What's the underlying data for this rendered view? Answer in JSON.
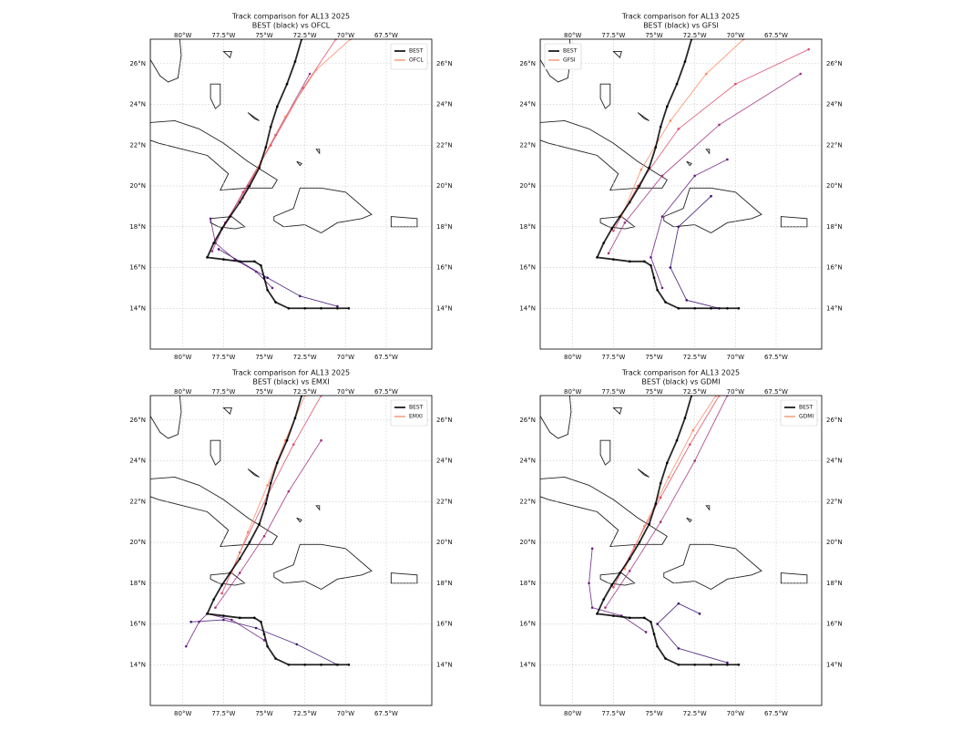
{
  "chart_data": [
    {
      "type": "line",
      "title": "Track comparison for AL13 2025",
      "subtitle": "BEST (black) vs OFCL",
      "xlim": [
        -82,
        -64.7
      ],
      "ylim": [
        12,
        27.2
      ],
      "xticks": [
        {
          "value": -80,
          "label": "80°W"
        },
        {
          "value": -77.5,
          "label": "77.5°W"
        },
        {
          "value": -75,
          "label": "75°W"
        },
        {
          "value": -72.5,
          "label": "72.5°W"
        },
        {
          "value": -70,
          "label": "70°W"
        },
        {
          "value": -67.5,
          "label": "67.5°W"
        }
      ],
      "yticks": [
        {
          "value": 14,
          "label": "14°N"
        },
        {
          "value": 16,
          "label": "16°N"
        },
        {
          "value": 18,
          "label": "18°N"
        },
        {
          "value": 20,
          "label": "20°N"
        },
        {
          "value": 22,
          "label": "22°N"
        },
        {
          "value": 24,
          "label": "24°N"
        },
        {
          "value": 26,
          "label": "26°N"
        }
      ],
      "grid": true,
      "legend": "upper right",
      "series": [
        {
          "name": "BEST",
          "color": "#000000",
          "x": [
            -69.8,
            -70.5,
            -71.5,
            -72.5,
            -73.5,
            -74.3,
            -74.8,
            -75.0,
            -75.2,
            -75.6,
            -76.5,
            -77.5,
            -78.5,
            -78.1,
            -77.6,
            -77.1,
            -76.5,
            -75.9,
            -75.3,
            -74.9,
            -74.6,
            -74.2,
            -73.6,
            -73.1,
            -72.7
          ],
          "values": [
            14.0,
            14.0,
            14.0,
            14.0,
            14.0,
            14.3,
            14.9,
            15.5,
            16.1,
            16.3,
            16.3,
            16.4,
            16.5,
            17.2,
            17.9,
            18.5,
            19.2,
            20.0,
            20.9,
            21.9,
            22.9,
            23.9,
            25.0,
            26.1,
            27.2
          ]
        },
        {
          "name": "OFCL",
          "color": "#f4a582",
          "tracks": [
            {
              "color": "#3b0f70",
              "x": [
                -70.5,
                -72.8,
                -74.8,
                -76.5,
                -77.8
              ],
              "values": [
                14.1,
                14.6,
                15.5,
                16.3,
                16.9
              ]
            },
            {
              "color": "#6a1c81",
              "x": [
                -74.5,
                -75.5,
                -76.8,
                -78.0,
                -78.3
              ],
              "values": [
                15.0,
                15.8,
                16.4,
                17.2,
                18.4
              ]
            },
            {
              "color": "#a3307e",
              "x": [
                -78.2,
                -77.4,
                -76.0,
                -74.3,
                -72.2
              ],
              "values": [
                16.8,
                18.2,
                20.0,
                22.5,
                25.5
              ]
            },
            {
              "color": "#de4968",
              "x": [
                -77.5,
                -76.3,
                -74.6,
                -72.6,
                -70.6
              ],
              "values": [
                18.0,
                19.7,
                22.0,
                24.8,
                27.2
              ]
            },
            {
              "color": "#fb8861",
              "x": [
                -76.3,
                -75.2,
                -73.7,
                -71.8,
                -69.7
              ],
              "values": [
                19.4,
                21.2,
                23.4,
                25.7,
                27.2
              ]
            }
          ]
        }
      ]
    },
    {
      "type": "line",
      "title": "Track comparison for AL13 2025",
      "subtitle": "BEST (black) vs GFSI",
      "xlim": [
        -82,
        -64.7
      ],
      "ylim": [
        12,
        27.2
      ],
      "xticks": [
        {
          "value": -80,
          "label": "80°W"
        },
        {
          "value": -77.5,
          "label": "77.5°W"
        },
        {
          "value": -75,
          "label": "75°W"
        },
        {
          "value": -72.5,
          "label": "72.5°W"
        },
        {
          "value": -70,
          "label": "70°W"
        },
        {
          "value": -67.5,
          "label": "67.5°W"
        }
      ],
      "yticks": [
        {
          "value": 14,
          "label": "14°N"
        },
        {
          "value": 16,
          "label": "16°N"
        },
        {
          "value": 18,
          "label": "18°N"
        },
        {
          "value": 20,
          "label": "20°N"
        },
        {
          "value": 22,
          "label": "22°N"
        },
        {
          "value": 24,
          "label": "24°N"
        },
        {
          "value": 26,
          "label": "26°N"
        }
      ],
      "grid": true,
      "legend": "upper left",
      "series": [
        {
          "name": "BEST",
          "color": "#000000",
          "x": [
            -69.8,
            -70.5,
            -71.5,
            -72.5,
            -73.5,
            -74.3,
            -74.8,
            -75.0,
            -75.2,
            -75.6,
            -76.5,
            -77.5,
            -78.5,
            -78.1,
            -77.6,
            -77.1,
            -76.5,
            -75.9,
            -75.3,
            -74.9,
            -74.6,
            -74.2,
            -73.6,
            -73.1,
            -72.7
          ],
          "values": [
            14.0,
            14.0,
            14.0,
            14.0,
            14.0,
            14.3,
            14.9,
            15.5,
            16.1,
            16.3,
            16.3,
            16.4,
            16.5,
            17.2,
            17.9,
            18.5,
            19.2,
            20.0,
            20.9,
            21.9,
            22.9,
            23.9,
            25.0,
            26.1,
            27.2
          ]
        },
        {
          "name": "GFSI",
          "color": "#f4a582",
          "tracks": [
            {
              "color": "#3b0f70",
              "x": [
                -71.0,
                -73.0,
                -74.0,
                -73.5,
                -71.5
              ],
              "values": [
                14.0,
                14.4,
                16.0,
                18.0,
                19.5
              ]
            },
            {
              "color": "#6a1c81",
              "x": [
                -74.5,
                -75.2,
                -74.5,
                -72.5,
                -70.5
              ],
              "values": [
                15.0,
                16.5,
                18.5,
                20.5,
                21.3
              ]
            },
            {
              "color": "#a3307e",
              "x": [
                -77.8,
                -76.8,
                -74.5,
                -71.0,
                -66.0
              ],
              "values": [
                16.7,
                18.2,
                20.5,
                23.0,
                25.5
              ]
            },
            {
              "color": "#de4968",
              "x": [
                -77.5,
                -76.0,
                -73.5,
                -70.0,
                -65.5
              ],
              "values": [
                17.8,
                20.0,
                22.8,
                25.0,
                26.7
              ]
            },
            {
              "color": "#fb8861",
              "x": [
                -77.0,
                -75.8,
                -74.0,
                -71.8,
                -69.5
              ],
              "values": [
                18.5,
                20.8,
                23.2,
                25.5,
                27.2
              ]
            }
          ]
        }
      ]
    },
    {
      "type": "line",
      "title": "Track comparison for AL13 2025",
      "subtitle": "BEST (black) vs EMXI",
      "xlim": [
        -82,
        -64.7
      ],
      "ylim": [
        12,
        27.2
      ],
      "xticks": [
        {
          "value": -80,
          "label": "80°W"
        },
        {
          "value": -77.5,
          "label": "77.5°W"
        },
        {
          "value": -75,
          "label": "75°W"
        },
        {
          "value": -72.5,
          "label": "72.5°W"
        },
        {
          "value": -70,
          "label": "70°W"
        },
        {
          "value": -67.5,
          "label": "67.5°W"
        }
      ],
      "yticks": [
        {
          "value": 14,
          "label": "14°N"
        },
        {
          "value": 16,
          "label": "16°N"
        },
        {
          "value": 18,
          "label": "18°N"
        },
        {
          "value": 20,
          "label": "20°N"
        },
        {
          "value": 22,
          "label": "22°N"
        },
        {
          "value": 24,
          "label": "24°N"
        },
        {
          "value": 26,
          "label": "26°N"
        }
      ],
      "grid": true,
      "legend": "upper right",
      "series": [
        {
          "name": "BEST",
          "color": "#000000",
          "x": [
            -69.8,
            -70.5,
            -71.5,
            -72.5,
            -73.5,
            -74.3,
            -74.8,
            -75.0,
            -75.2,
            -75.6,
            -76.5,
            -77.5,
            -78.5,
            -78.1,
            -77.6,
            -77.1,
            -76.5,
            -75.9,
            -75.3,
            -74.9,
            -74.6,
            -74.2,
            -73.6,
            -73.1,
            -72.7
          ],
          "values": [
            14.0,
            14.0,
            14.0,
            14.0,
            14.0,
            14.3,
            14.9,
            15.5,
            16.1,
            16.3,
            16.3,
            16.4,
            16.5,
            17.2,
            17.9,
            18.5,
            19.2,
            20.0,
            20.9,
            21.9,
            22.9,
            23.9,
            25.0,
            26.1,
            27.2
          ]
        },
        {
          "name": "EMXI",
          "color": "#f4a582",
          "tracks": [
            {
              "color": "#3b0f70",
              "x": [
                -70.5,
                -73.0,
                -75.5,
                -77.5,
                -79.5
              ],
              "values": [
                14.0,
                15.0,
                15.8,
                16.2,
                16.1
              ]
            },
            {
              "color": "#6a1c81",
              "x": [
                -75.0,
                -77.0,
                -78.5,
                -79.0,
                -79.8
              ],
              "values": [
                15.2,
                16.2,
                16.5,
                16.1,
                14.9
              ]
            },
            {
              "color": "#a3307e",
              "x": [
                -78.0,
                -76.5,
                -75.0,
                -73.5,
                -71.5
              ],
              "values": [
                16.8,
                18.5,
                20.3,
                22.5,
                25.0
              ]
            },
            {
              "color": "#de4968",
              "x": [
                -77.6,
                -76.5,
                -74.8,
                -73.2,
                -71.5
              ],
              "values": [
                17.5,
                19.5,
                22.3,
                24.8,
                27.2
              ]
            },
            {
              "color": "#fb8861",
              "x": [
                -77.0,
                -76.0,
                -74.8,
                -73.7,
                -72.5
              ],
              "values": [
                18.5,
                20.5,
                22.8,
                25.0,
                27.2
              ]
            }
          ]
        }
      ]
    },
    {
      "type": "line",
      "title": "Track comparison for AL13 2025",
      "subtitle": "BEST (black) vs GDMI",
      "xlim": [
        -82,
        -64.7
      ],
      "ylim": [
        12,
        27.2
      ],
      "xticks": [
        {
          "value": -80,
          "label": "80°W"
        },
        {
          "value": -77.5,
          "label": "77.5°W"
        },
        {
          "value": -75,
          "label": "75°W"
        },
        {
          "value": -72.5,
          "label": "72.5°W"
        },
        {
          "value": -70,
          "label": "70°W"
        },
        {
          "value": -67.5,
          "label": "67.5°W"
        }
      ],
      "yticks": [
        {
          "value": 14,
          "label": "14°N"
        },
        {
          "value": 16,
          "label": "16°N"
        },
        {
          "value": 18,
          "label": "18°N"
        },
        {
          "value": 20,
          "label": "20°N"
        },
        {
          "value": 22,
          "label": "22°N"
        },
        {
          "value": 24,
          "label": "24°N"
        },
        {
          "value": 26,
          "label": "26°N"
        }
      ],
      "grid": true,
      "legend": "upper right",
      "series": [
        {
          "name": "BEST",
          "color": "#000000",
          "x": [
            -69.8,
            -70.5,
            -71.5,
            -72.5,
            -73.5,
            -74.3,
            -74.8,
            -75.0,
            -75.2,
            -75.6,
            -76.5,
            -77.5,
            -78.5,
            -78.1,
            -77.6,
            -77.1,
            -76.5,
            -75.9,
            -75.3,
            -74.9,
            -74.6,
            -74.2,
            -73.6,
            -73.1,
            -72.7
          ],
          "values": [
            14.0,
            14.0,
            14.0,
            14.0,
            14.0,
            14.3,
            14.9,
            15.5,
            16.1,
            16.3,
            16.3,
            16.4,
            16.5,
            17.2,
            17.9,
            18.5,
            19.2,
            20.0,
            20.9,
            21.9,
            22.9,
            23.9,
            25.0,
            26.1,
            27.2
          ]
        },
        {
          "name": "GDMI",
          "color": "#f4a582",
          "tracks": [
            {
              "color": "#3b0f70",
              "x": [
                -70.5,
                -73.5,
                -74.8,
                -73.5,
                -72.2
              ],
              "values": [
                14.1,
                14.8,
                16.0,
                17.0,
                16.5
              ]
            },
            {
              "color": "#6a1c81",
              "x": [
                -75.5,
                -77.0,
                -78.8,
                -79.0,
                -78.8
              ],
              "values": [
                15.6,
                16.4,
                16.8,
                18.0,
                19.7
              ]
            },
            {
              "color": "#a3307e",
              "x": [
                -78.0,
                -76.5,
                -74.6,
                -72.5,
                -70.5
              ],
              "values": [
                16.8,
                18.6,
                21.0,
                24.0,
                27.2
              ]
            },
            {
              "color": "#de4968",
              "x": [
                -77.5,
                -76.2,
                -74.6,
                -72.8,
                -71.0
              ],
              "values": [
                17.8,
                19.8,
                22.2,
                24.8,
                27.2
              ]
            },
            {
              "color": "#fb8861",
              "x": [
                -76.8,
                -75.6,
                -74.1,
                -72.6,
                -71.2
              ],
              "values": [
                18.7,
                20.8,
                23.2,
                25.5,
                27.2
              ]
            }
          ]
        }
      ]
    }
  ]
}
